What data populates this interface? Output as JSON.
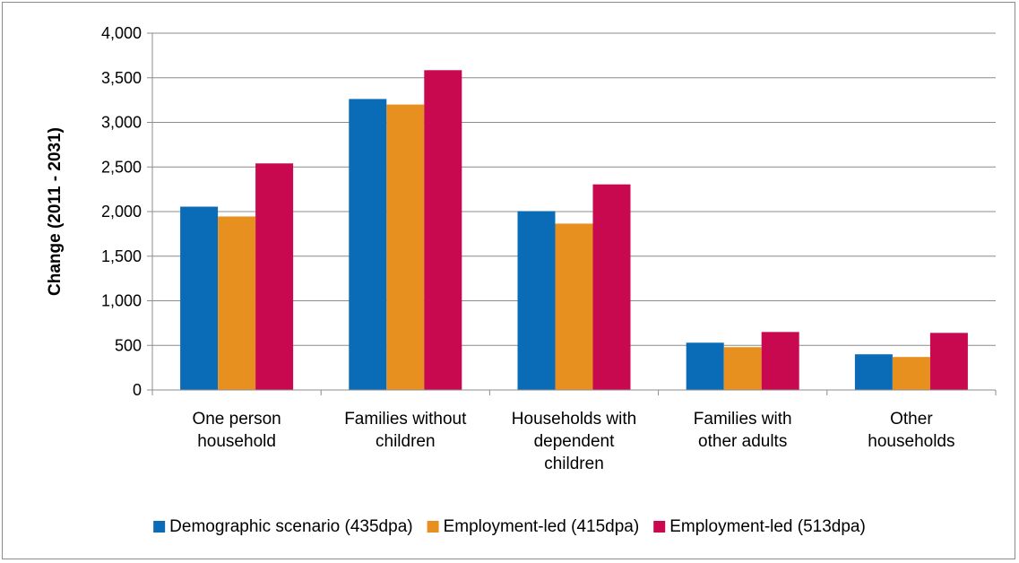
{
  "chart_data": {
    "type": "bar",
    "title": "",
    "xlabel": "",
    "ylabel": "Change (2011 - 2031)",
    "ylim": [
      0,
      4000
    ],
    "y_ticks": [
      "0",
      "500",
      "1,000",
      "1,500",
      "2,000",
      "2,500",
      "3,000",
      "3,500",
      "4,000"
    ],
    "grid": true,
    "legend_position": "bottom",
    "categories": [
      [
        "One person",
        "household"
      ],
      [
        "Families without",
        "children"
      ],
      [
        "Households with",
        "dependent",
        "children"
      ],
      [
        "Families with",
        "other adults"
      ],
      [
        "Other",
        "households"
      ]
    ],
    "series": [
      {
        "name": "Demographic scenario (435dpa)",
        "color": "#0A6BB6",
        "values": [
          2055,
          3262,
          2005,
          530,
          400
        ]
      },
      {
        "name": "Employment-led (415dpa)",
        "color": "#E8901F",
        "values": [
          1945,
          3200,
          1865,
          480,
          370
        ]
      },
      {
        "name": "Employment-led (513dpa)",
        "color": "#C8094F",
        "values": [
          2540,
          3585,
          2305,
          650,
          640
        ]
      }
    ]
  }
}
